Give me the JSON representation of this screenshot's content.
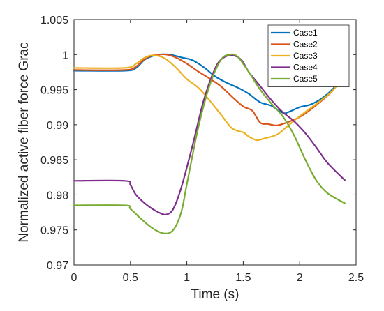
{
  "chart_data": {
    "type": "line",
    "xlabel": "Time (s)",
    "ylabel": "Normalized active fiber force  Grac",
    "xlim": [
      0,
      2.5
    ],
    "ylim": [
      0.97,
      1.005
    ],
    "xticks": [
      0,
      0.5,
      1,
      1.5,
      2,
      2.5
    ],
    "xtick_labels": [
      "0",
      "0.5",
      "1",
      "1.5",
      "2",
      "2.5"
    ],
    "yticks": [
      0.97,
      0.975,
      0.98,
      0.985,
      0.99,
      0.995,
      1,
      1.005
    ],
    "ytick_labels": [
      "0.97",
      "0.975",
      "0.98",
      "0.985",
      "0.99",
      "0.995",
      "1",
      "1.005"
    ],
    "grid": false,
    "legend_position": "top-right",
    "series": [
      {
        "name": "Case1",
        "color": "#0072BD",
        "points": [
          [
            0,
            0.9977
          ],
          [
            0.45,
            0.9977
          ],
          [
            0.55,
            0.9981
          ],
          [
            0.62,
            0.9992
          ],
          [
            0.68,
            0.9997
          ],
          [
            0.75,
            1.0
          ],
          [
            0.85,
            1.0
          ],
          [
            0.95,
            0.9996
          ],
          [
            1.05,
            0.9992
          ],
          [
            1.15,
            0.9982
          ],
          [
            1.25,
            0.9969
          ],
          [
            1.35,
            0.996
          ],
          [
            1.45,
            0.9953
          ],
          [
            1.55,
            0.9944
          ],
          [
            1.65,
            0.9932
          ],
          [
            1.75,
            0.9927
          ],
          [
            1.85,
            0.9917
          ],
          [
            1.9,
            0.9918
          ],
          [
            2.0,
            0.9925
          ],
          [
            2.1,
            0.9929
          ],
          [
            2.2,
            0.9938
          ],
          [
            2.3,
            0.9952
          ],
          [
            2.4,
            0.9973
          ]
        ]
      },
      {
        "name": "Case2",
        "color": "#D95319",
        "points": [
          [
            0,
            0.9978
          ],
          [
            0.45,
            0.9978
          ],
          [
            0.55,
            0.9983
          ],
          [
            0.62,
            0.9993
          ],
          [
            0.68,
            0.9998
          ],
          [
            0.75,
            1.0
          ],
          [
            0.82,
            1.0
          ],
          [
            0.9,
            0.9996
          ],
          [
            1.0,
            0.9987
          ],
          [
            1.1,
            0.9976
          ],
          [
            1.2,
            0.9966
          ],
          [
            1.3,
            0.9955
          ],
          [
            1.4,
            0.994
          ],
          [
            1.5,
            0.9926
          ],
          [
            1.58,
            0.992
          ],
          [
            1.65,
            0.9903
          ],
          [
            1.72,
            0.9901
          ],
          [
            1.8,
            0.9899
          ],
          [
            1.9,
            0.9904
          ],
          [
            2.0,
            0.9911
          ],
          [
            2.1,
            0.9922
          ],
          [
            2.2,
            0.9935
          ],
          [
            2.3,
            0.995
          ],
          [
            2.4,
            0.9974
          ]
        ]
      },
      {
        "name": "Case3",
        "color": "#EDB120",
        "points": [
          [
            0,
            0.9981
          ],
          [
            0.45,
            0.9981
          ],
          [
            0.55,
            0.9987
          ],
          [
            0.62,
            0.9995
          ],
          [
            0.7,
            0.9999
          ],
          [
            0.8,
            0.9995
          ],
          [
            0.9,
            0.9982
          ],
          [
            1.0,
            0.9965
          ],
          [
            1.1,
            0.9953
          ],
          [
            1.2,
            0.9935
          ],
          [
            1.3,
            0.9915
          ],
          [
            1.4,
            0.9895
          ],
          [
            1.5,
            0.9889
          ],
          [
            1.55,
            0.9883
          ],
          [
            1.62,
            0.9878
          ],
          [
            1.7,
            0.9881
          ],
          [
            1.8,
            0.9886
          ],
          [
            1.9,
            0.9899
          ],
          [
            2.0,
            0.9912
          ],
          [
            2.1,
            0.9924
          ],
          [
            2.2,
            0.9936
          ],
          [
            2.3,
            0.995
          ],
          [
            2.4,
            0.997
          ]
        ]
      },
      {
        "name": "Case4",
        "color": "#7E2F8E",
        "points": [
          [
            0,
            0.982
          ],
          [
            0.45,
            0.982
          ],
          [
            0.5,
            0.9814
          ],
          [
            0.55,
            0.98
          ],
          [
            0.65,
            0.9785
          ],
          [
            0.75,
            0.9775
          ],
          [
            0.82,
            0.9772
          ],
          [
            0.88,
            0.978
          ],
          [
            0.95,
            0.981
          ],
          [
            1.05,
            0.987
          ],
          [
            1.15,
            0.9935
          ],
          [
            1.25,
            0.998
          ],
          [
            1.32,
            0.9995
          ],
          [
            1.4,
            0.9999
          ],
          [
            1.48,
            0.9993
          ],
          [
            1.55,
            0.9975
          ],
          [
            1.65,
            0.9955
          ],
          [
            1.75,
            0.9935
          ],
          [
            1.85,
            0.9918
          ],
          [
            1.95,
            0.9905
          ],
          [
            2.05,
            0.9888
          ],
          [
            2.15,
            0.9867
          ],
          [
            2.25,
            0.9845
          ],
          [
            2.4,
            0.9821
          ]
        ]
      },
      {
        "name": "Case5",
        "color": "#77AC30",
        "points": [
          [
            0,
            0.9785
          ],
          [
            0.45,
            0.9785
          ],
          [
            0.5,
            0.978
          ],
          [
            0.6,
            0.9765
          ],
          [
            0.7,
            0.9752
          ],
          [
            0.8,
            0.9745
          ],
          [
            0.88,
            0.975
          ],
          [
            0.95,
            0.9775
          ],
          [
            1.0,
            0.9815
          ],
          [
            1.1,
            0.9895
          ],
          [
            1.2,
            0.9955
          ],
          [
            1.3,
            0.9992
          ],
          [
            1.38,
            1.0
          ],
          [
            1.45,
            0.9997
          ],
          [
            1.55,
            0.9975
          ],
          [
            1.65,
            0.995
          ],
          [
            1.75,
            0.993
          ],
          [
            1.85,
            0.9912
          ],
          [
            1.95,
            0.9885
          ],
          [
            2.05,
            0.985
          ],
          [
            2.15,
            0.982
          ],
          [
            2.25,
            0.9802
          ],
          [
            2.4,
            0.9788
          ]
        ]
      }
    ]
  }
}
